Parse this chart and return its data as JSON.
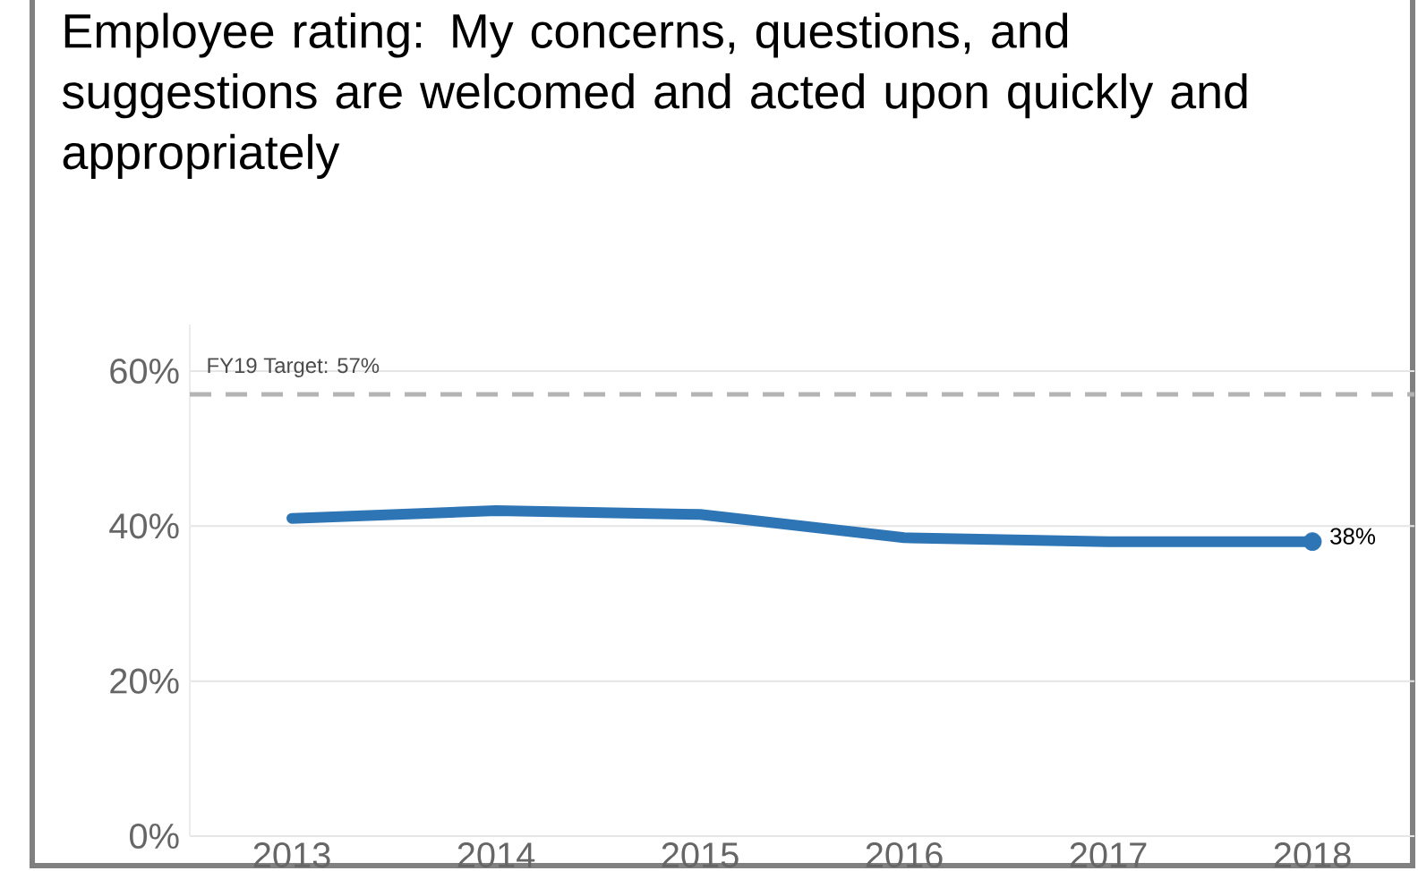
{
  "chart_data": {
    "type": "line",
    "title": "Employee rating: My concerns, questions, and suggestions are welcomed and acted upon quickly and appropriately",
    "categories": [
      "2013",
      "2014",
      "2015",
      "2016",
      "2017",
      "2018"
    ],
    "series": [
      {
        "color": "#2e75b6",
        "values": [
          41,
          42,
          41.5,
          38.5,
          38,
          38
        ],
        "value_labels": [
          null,
          null,
          null,
          null,
          null,
          "38%"
        ]
      }
    ],
    "ylim": [
      0,
      66
    ],
    "yticks": [
      {
        "value": 0,
        "label": "0%"
      },
      {
        "value": 20,
        "label": "20%"
      },
      {
        "value": 40,
        "label": "40%"
      },
      {
        "value": 60,
        "label": "60%"
      }
    ],
    "grid": "y",
    "marker": "none",
    "line_style": "solid",
    "ref_lines": [
      {
        "axis": "y",
        "value": 57,
        "label": "FY19 Target: 57%",
        "color": "#b4b4b4",
        "line_style": "dashed"
      }
    ]
  }
}
